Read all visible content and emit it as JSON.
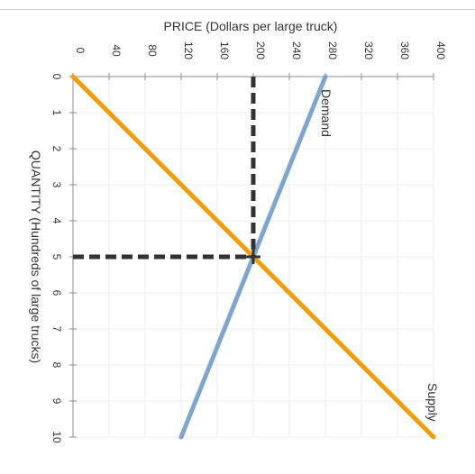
{
  "chart_data": {
    "type": "line",
    "orientation": "rotated-90-clockwise",
    "xlabel": "PRICE (Dollars per large truck)",
    "ylabel": "QUANTITY (Hundreds of large trucks)",
    "x_axis": {
      "min": 0,
      "max": 400,
      "ticks": [
        0,
        40,
        80,
        120,
        160,
        200,
        240,
        280,
        320,
        360,
        400
      ]
    },
    "y_axis": {
      "min": 0,
      "max": 10,
      "ticks": [
        0,
        1,
        2,
        3,
        4,
        5,
        6,
        7,
        8,
        9,
        10
      ]
    },
    "grid": true,
    "series": [
      {
        "name": "Demand",
        "color": "#7ea6d0",
        "points": [
          [
            280,
            0
          ],
          [
            120,
            10
          ]
        ]
      },
      {
        "name": "Supply",
        "color": "#f59c0a",
        "points": [
          [
            0,
            0
          ],
          [
            400,
            10
          ]
        ]
      }
    ],
    "equilibrium": {
      "price": 200,
      "quantity": 5,
      "color": "#333333"
    }
  }
}
